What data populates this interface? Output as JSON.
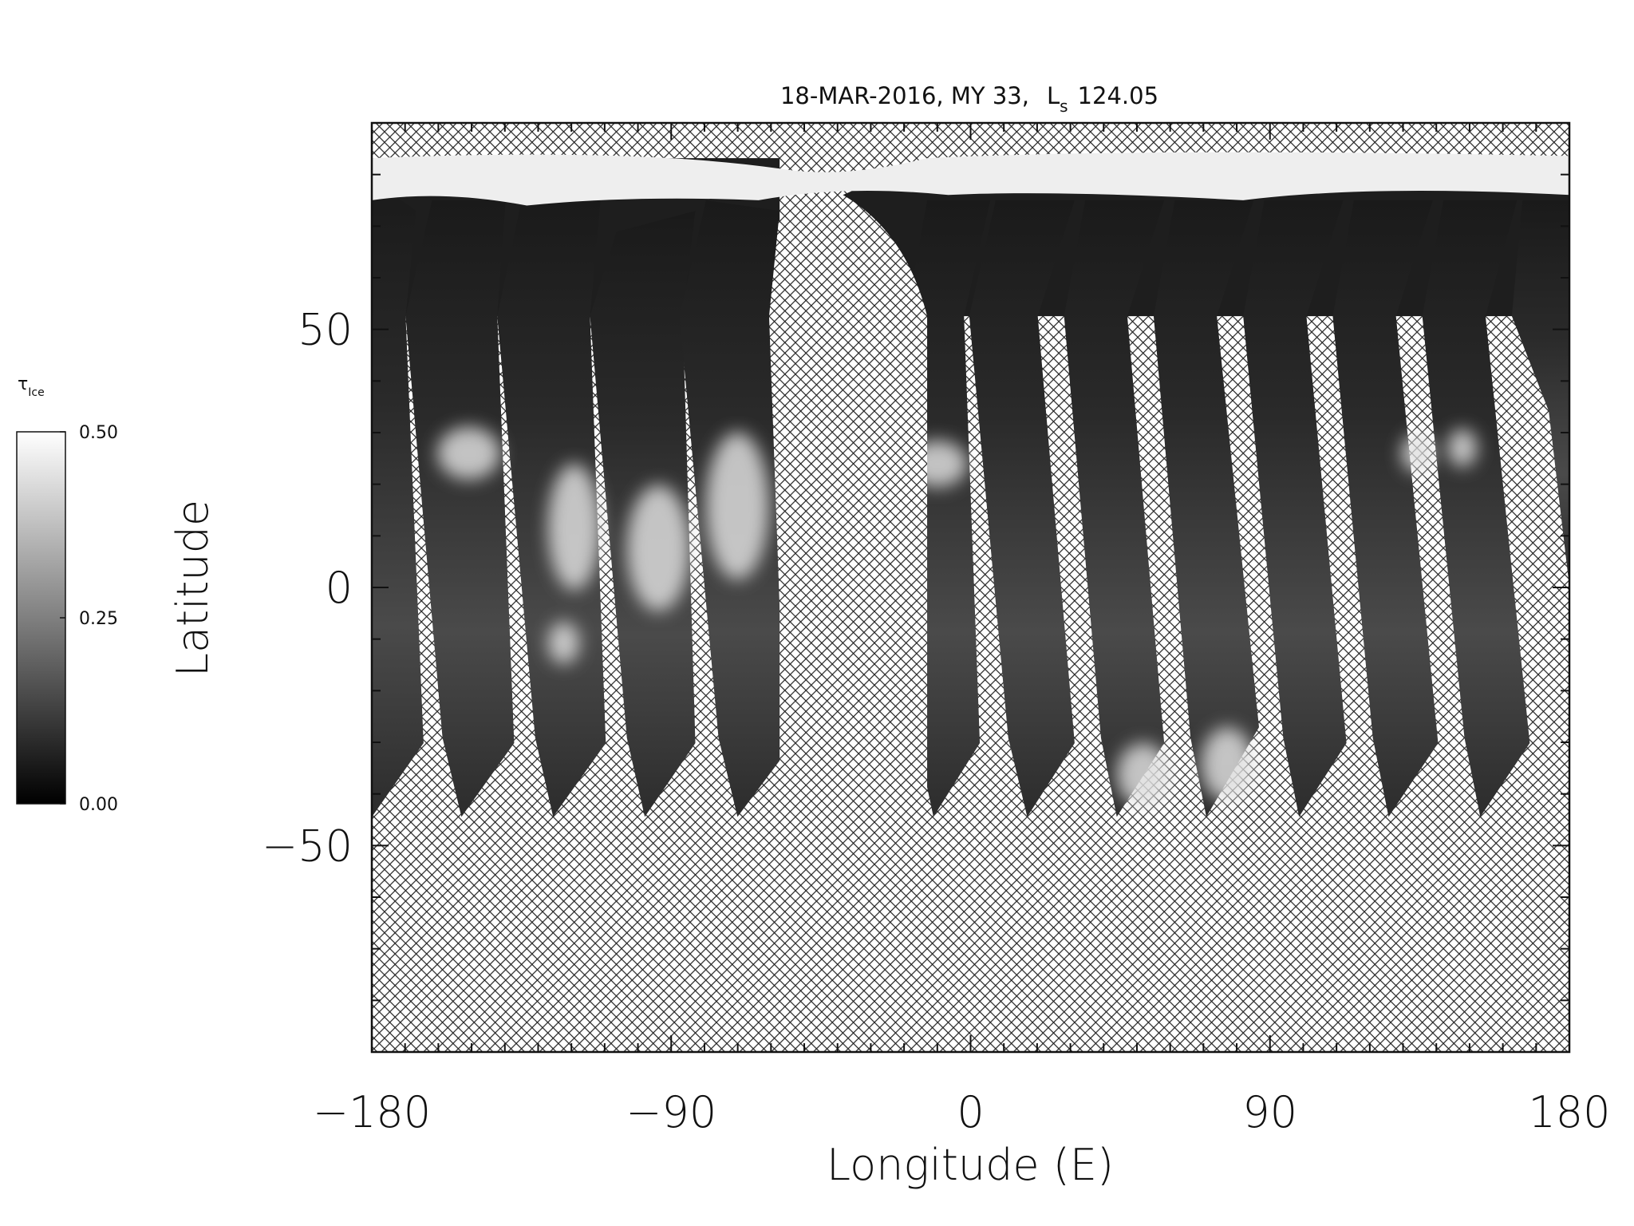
{
  "chart_data": {
    "type": "map",
    "title": "18-MAR-2016, MY 33,",
    "title_ls": "L",
    "title_ls_subscript": "s",
    "title_ls_value": "124.05",
    "xlabel": "Longitude (E)",
    "ylabel": "Latitude",
    "xlim": [
      -180,
      180
    ],
    "ylim": [
      -90,
      90
    ],
    "xticks": [
      {
        "value": -180,
        "label": "−180"
      },
      {
        "value": -90,
        "label": "−90"
      },
      0,
      90,
      180
    ],
    "yticks": [
      {
        "value": -50,
        "label": "−50"
      },
      0,
      50
    ],
    "xminorticks": [
      -170,
      -160,
      -150,
      -140,
      -130,
      -120,
      -110,
      -100,
      -80,
      -70,
      -60,
      -50,
      -40,
      -30,
      -20,
      -10,
      10,
      20,
      30,
      40,
      50,
      60,
      70,
      80,
      100,
      110,
      120,
      130,
      140,
      150,
      160,
      170
    ],
    "yminorticks": [
      -80,
      -70,
      -60,
      -40,
      -30,
      -20,
      -10,
      10,
      20,
      30,
      40,
      60,
      70,
      80
    ],
    "colormap": "gray",
    "colorbar": {
      "label": "τ",
      "label_subscript": "Ice",
      "lim": [
        0,
        0.5
      ],
      "ticks": [
        {
          "value": 0,
          "label": "0.00"
        },
        {
          "value": 0.25,
          "label": "0.25"
        },
        {
          "value": 0.5,
          "label": "0.50"
        }
      ]
    }
  }
}
